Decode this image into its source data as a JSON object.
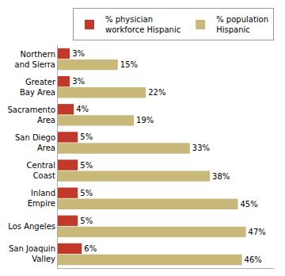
{
  "chart_data": {
    "type": "bar",
    "orientation": "horizontal",
    "categories": [
      "Northern\nand Sierra",
      "Greater\nBay Area",
      "Sacramento\nArea",
      "San Diego\nArea",
      "Central\nCoast",
      "Inland\nEmpire",
      "Los Angeles",
      "San Joaquin\nValley"
    ],
    "series": [
      {
        "name": "% physician\nworkforce Hispanic",
        "color": "#c0392b",
        "values": [
          3,
          3,
          4,
          5,
          5,
          5,
          5,
          6
        ],
        "value_labels": [
          "3%",
          "3%",
          "4%",
          "5%",
          "5%",
          "5%",
          "5%",
          "6%"
        ]
      },
      {
        "name": "% population\nHispanic",
        "color": "#c8b97a",
        "values": [
          15,
          22,
          19,
          33,
          38,
          45,
          47,
          46
        ],
        "value_labels": [
          "15%",
          "22%",
          "19%",
          "33%",
          "38%",
          "45%",
          "47%",
          "46%"
        ]
      }
    ],
    "xlim": [
      0,
      54
    ],
    "tick_labels": "y",
    "data_labels": true,
    "legend": "upper right",
    "grid": false
  }
}
